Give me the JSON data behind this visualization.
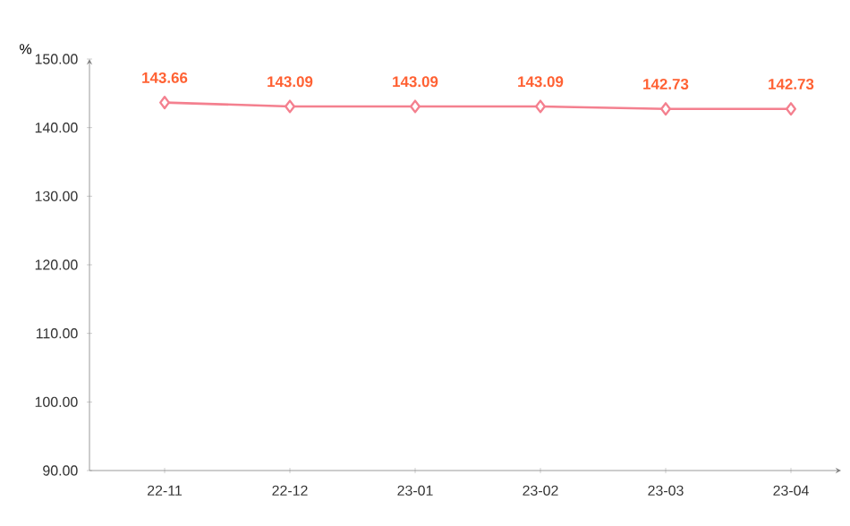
{
  "chart_data": {
    "type": "line",
    "ylabel": "%",
    "categories": [
      "22-11",
      "22-12",
      "23-01",
      "23-02",
      "23-03",
      "23-04"
    ],
    "values": [
      143.66,
      143.09,
      143.09,
      143.09,
      142.73,
      142.73
    ],
    "color": "#f4808f",
    "marker": "diamond",
    "line_style": "solid",
    "data_labels": true,
    "ylim": [
      90,
      150
    ],
    "yticks": [
      {
        "value": 90,
        "label": "90.00"
      },
      {
        "value": 100,
        "label": "100.00"
      },
      {
        "value": 110,
        "label": "110.00"
      },
      {
        "value": 120,
        "label": "120.00"
      },
      {
        "value": 130,
        "label": "130.00"
      },
      {
        "value": 140,
        "label": "140.00"
      },
      {
        "value": 150,
        "label": "150.00"
      }
    ]
  }
}
